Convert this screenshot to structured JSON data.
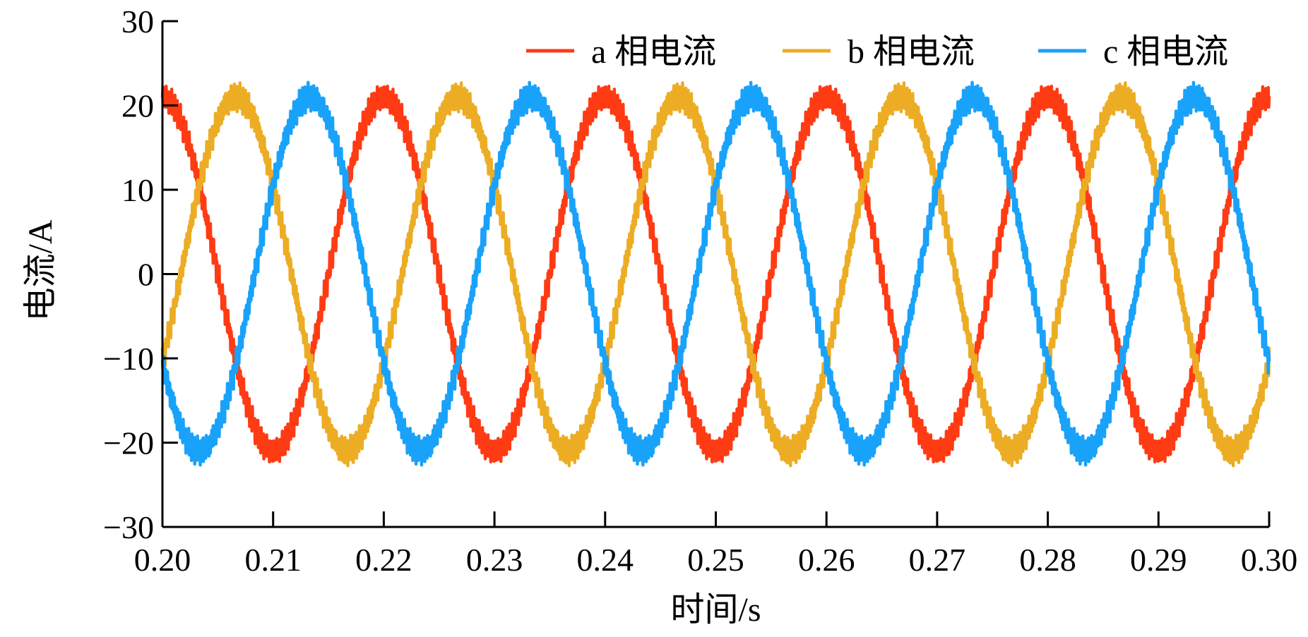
{
  "chart_data": {
    "type": "line",
    "xlabel": "时间/s",
    "ylabel": "电流/A",
    "xlim": [
      0.2,
      0.3
    ],
    "ylim": [
      -30,
      30
    ],
    "x_ticks": [
      "0.20",
      "0.21",
      "0.22",
      "0.23",
      "0.24",
      "0.25",
      "0.26",
      "0.27",
      "0.28",
      "0.29",
      "0.30"
    ],
    "y_ticks": [
      "30",
      "20",
      "10",
      "0",
      "−10",
      "−20",
      "−30"
    ],
    "y_tick_values": [
      30,
      20,
      10,
      0,
      -10,
      -20,
      -30
    ],
    "grid": false,
    "legend_position": "top-right",
    "series": [
      {
        "name": "a 相电流",
        "color": "#ff3b14",
        "amplitude": 21,
        "frequency_hz": 50,
        "phase_deg": 90,
        "ripple": 1.2
      },
      {
        "name": "b 相电流",
        "color": "#ecad24",
        "amplitude": 21,
        "frequency_hz": 50,
        "phase_deg": -30,
        "ripple": 1.2
      },
      {
        "name": "c 相电流",
        "color": "#19a2fa",
        "amplitude": 21,
        "frequency_hz": 50,
        "phase_deg": 210,
        "ripple": 1.2
      }
    ]
  }
}
